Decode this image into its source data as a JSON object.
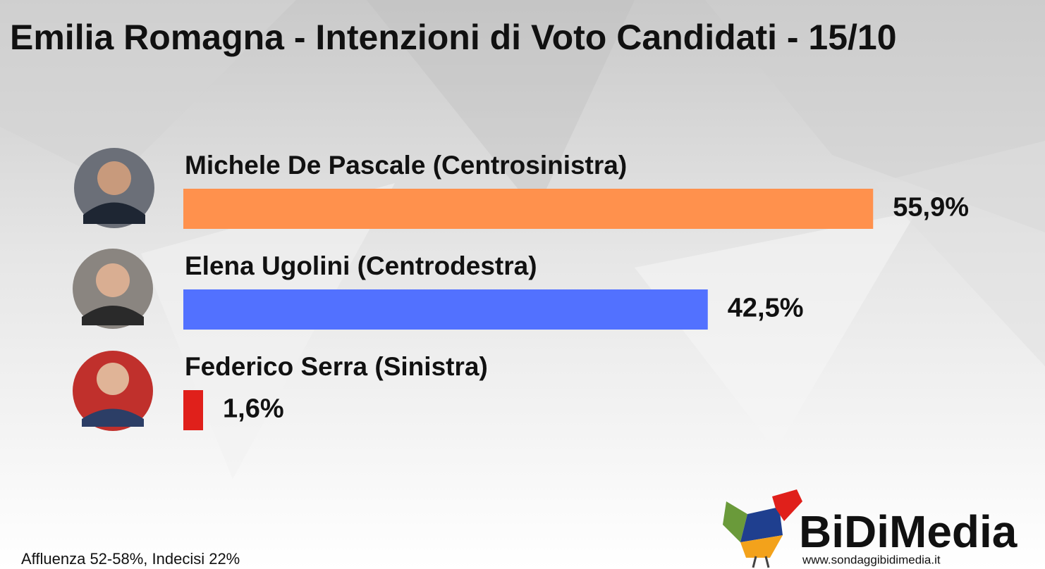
{
  "chart_data": {
    "type": "bar",
    "orientation": "horizontal",
    "title": "Emilia Romagna - Intenzioni di Voto Candidati - 15/10",
    "categories": [
      "Michele De Pascale (Centrosinistra)",
      "Elena Ugolini (Centrodestra)",
      "Federico Serra (Sinistra)"
    ],
    "values": [
      55.9,
      42.5,
      1.6
    ],
    "value_labels": [
      "55,9%",
      "42,5%",
      "1,6%"
    ],
    "colors": [
      "#ff914d",
      "#5271ff",
      "#e0201b"
    ],
    "note": "Affluenza 52-58%, Indecisi 22%"
  },
  "logo": {
    "name": "BiDiMedia",
    "url": "www.sondaggibidimedia.it"
  }
}
